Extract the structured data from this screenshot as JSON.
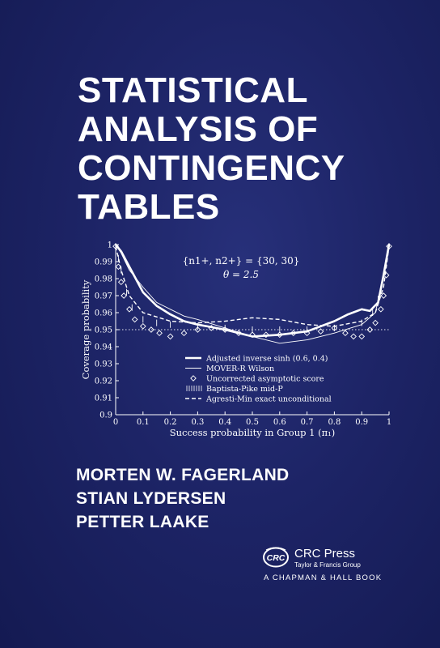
{
  "cover": {
    "title_lines": [
      "STATISTICAL",
      "ANALYSIS OF",
      "CONTINGENCY",
      "TABLES"
    ],
    "authors": [
      "MORTEN W. FAGERLAND",
      "STIAN LYDERSEN",
      "PETTER LAAKE"
    ],
    "publisher": {
      "logo_text": "CRC",
      "name": "CRC Press",
      "group": "Taylor & Francis Group",
      "series": "A CHAPMAN & HALL BOOK"
    },
    "colors": {
      "background": "#1d2466",
      "text": "#ffffff"
    }
  },
  "chart_data": {
    "type": "line",
    "xlabel": "Success probability in Group 1 (π₁)",
    "ylabel": "Coverage probability",
    "xlim": [
      0,
      1
    ],
    "ylim": [
      0.9,
      1.0
    ],
    "xticks": [
      "0",
      "0.1",
      "0.2",
      "0.3",
      "0.4",
      "0.5",
      "0.6",
      "0.7",
      "0.8",
      "0.9",
      "1"
    ],
    "yticks": [
      "0.9",
      "0.91",
      "0.92",
      "0.93",
      "0.94",
      "0.95",
      "0.96",
      "0.97",
      "0.98",
      "0.99",
      "1"
    ],
    "annotation": [
      "{n1+, n2+} = {30, 30}",
      "θ = 2.5"
    ],
    "reference_line": 0.95,
    "legend_position": "lower-center",
    "series": [
      {
        "name": "Adjusted inverse sinh (0.6, 0.4)",
        "style": "thick",
        "x": [
          0,
          0.02,
          0.05,
          0.1,
          0.15,
          0.2,
          0.25,
          0.3,
          0.4,
          0.5,
          0.6,
          0.7,
          0.8,
          0.85,
          0.9,
          0.93,
          0.96,
          0.98,
          1
        ],
        "y": [
          1.0,
          0.996,
          0.987,
          0.972,
          0.964,
          0.959,
          0.955,
          0.953,
          0.95,
          0.946,
          0.947,
          0.949,
          0.955,
          0.959,
          0.962,
          0.961,
          0.966,
          0.982,
          1.0
        ]
      },
      {
        "name": "MOVER-R Wilson",
        "style": "thin",
        "x": [
          0,
          0.02,
          0.05,
          0.1,
          0.15,
          0.2,
          0.25,
          0.3,
          0.4,
          0.5,
          0.6,
          0.7,
          0.8,
          0.9,
          0.95,
          1
        ],
        "y": [
          1.0,
          0.995,
          0.985,
          0.975,
          0.966,
          0.962,
          0.958,
          0.956,
          0.951,
          0.946,
          0.942,
          0.944,
          0.948,
          0.953,
          0.96,
          0.998
        ]
      },
      {
        "name": "Uncorrected asymptotic score",
        "style": "diamond",
        "x": [
          0,
          0.01,
          0.02,
          0.03,
          0.05,
          0.07,
          0.1,
          0.13,
          0.16,
          0.2,
          0.25,
          0.3,
          0.35,
          0.4,
          0.45,
          0.5,
          0.55,
          0.6,
          0.65,
          0.7,
          0.75,
          0.8,
          0.84,
          0.87,
          0.9,
          0.93,
          0.95,
          0.97,
          0.98,
          0.99,
          1
        ],
        "y": [
          0.999,
          0.987,
          0.978,
          0.97,
          0.962,
          0.956,
          0.952,
          0.95,
          0.948,
          0.946,
          0.948,
          0.95,
          0.951,
          0.95,
          0.948,
          0.947,
          0.947,
          0.947,
          0.948,
          0.948,
          0.949,
          0.951,
          0.948,
          0.946,
          0.946,
          0.95,
          0.954,
          0.962,
          0.97,
          0.982,
          0.999
        ]
      },
      {
        "name": "Baptista-Pike mid-P",
        "style": "hatched",
        "x": [
          0,
          0.01,
          0.02,
          0.04,
          0.06,
          0.1,
          0.15,
          0.2,
          0.3,
          0.4,
          0.5,
          0.6,
          0.7,
          0.8,
          0.9,
          0.94,
          0.96,
          0.98,
          0.99,
          1
        ],
        "y": [
          0.999,
          0.992,
          0.985,
          0.972,
          0.963,
          0.956,
          0.954,
          0.953,
          0.952,
          0.951,
          0.95,
          0.95,
          0.95,
          0.951,
          0.954,
          0.96,
          0.968,
          0.982,
          0.99,
          0.999
        ]
      },
      {
        "name": "Agresti-Min exact unconditional",
        "style": "dashed",
        "x": [
          0,
          0.02,
          0.05,
          0.1,
          0.2,
          0.3,
          0.4,
          0.5,
          0.6,
          0.7,
          0.8,
          0.9,
          0.95,
          0.98,
          1
        ],
        "y": [
          0.999,
          0.985,
          0.97,
          0.96,
          0.955,
          0.954,
          0.955,
          0.957,
          0.956,
          0.953,
          0.952,
          0.955,
          0.96,
          0.975,
          0.999
        ]
      }
    ]
  }
}
